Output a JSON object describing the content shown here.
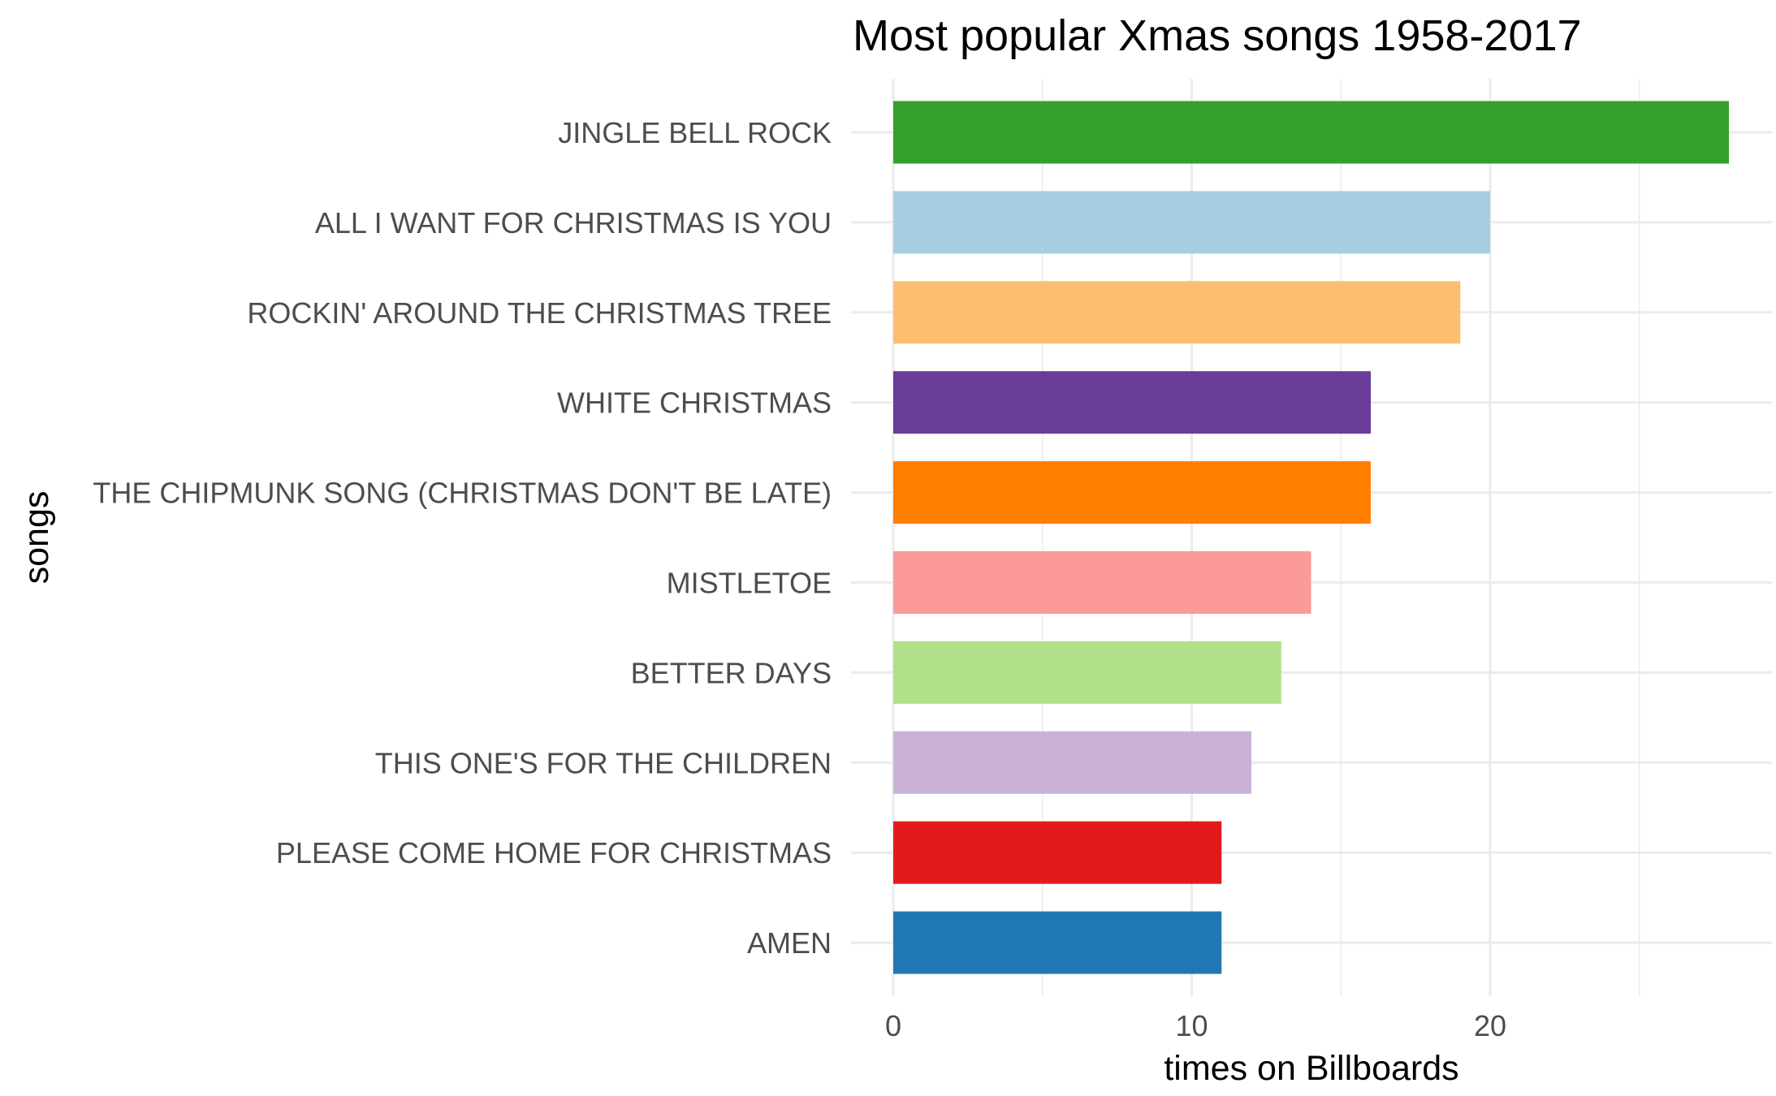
{
  "chart_data": {
    "type": "bar",
    "orientation": "horizontal",
    "title": "Most popular Xmas songs 1958-2017",
    "xlabel": "times on Billboards",
    "ylabel": "songs",
    "xlim": [
      0,
      29
    ],
    "x_ticks": [
      0,
      10,
      20
    ],
    "grid": true,
    "legend": "none",
    "categories": [
      "JINGLE BELL ROCK",
      "ALL I WANT FOR CHRISTMAS IS YOU",
      "ROCKIN' AROUND THE CHRISTMAS TREE",
      "WHITE CHRISTMAS",
      "THE CHIPMUNK SONG (CHRISTMAS DON'T BE LATE)",
      "MISTLETOE",
      "BETTER DAYS",
      "THIS ONE'S FOR THE CHILDREN",
      "PLEASE COME HOME FOR CHRISTMAS",
      "AMEN"
    ],
    "values": [
      28,
      20,
      19,
      16,
      16,
      14,
      13,
      12,
      11,
      11
    ],
    "colors": [
      "#33a02c",
      "#a6cee3",
      "#fdbf6f",
      "#6a3d9a",
      "#ff7f00",
      "#fb9a99",
      "#b2df8a",
      "#cab2d6",
      "#e31a1c",
      "#1f78b4"
    ]
  }
}
